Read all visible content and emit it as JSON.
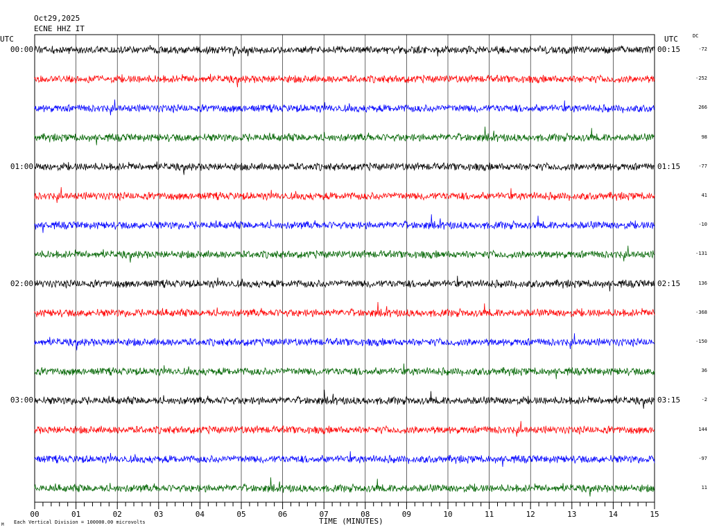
{
  "header": {
    "date": "Oct29,2025",
    "station": "ECNE HHZ IT"
  },
  "labels": {
    "utc_left": "UTC",
    "utc_right": "UTC",
    "dc": "DC",
    "xlabel": "TIME (MINUTES)",
    "scale_note": "Each Vertical Division = 100000.00 microvolts",
    "scale_mark": "M"
  },
  "chart_data": {
    "type": "line",
    "xlabel": "TIME (MINUTES)",
    "xlim": [
      0,
      15
    ],
    "x_ticks": [
      "00",
      "01",
      "02",
      "03",
      "04",
      "05",
      "06",
      "07",
      "08",
      "09",
      "10",
      "11",
      "12",
      "13",
      "14",
      "15"
    ],
    "minor_ticks_per_minute": 5,
    "grid": true,
    "trace_colors": [
      "#000000",
      "#ff0000",
      "#0000ff",
      "#006400"
    ],
    "hour_labels_left": [
      "00:00",
      "01:00",
      "02:00",
      "03:00"
    ],
    "hour_labels_right": [
      "00:15",
      "01:15",
      "02:15",
      "03:15"
    ],
    "dc_offsets": [
      "-72",
      "-252",
      "266",
      "98",
      "-77",
      "41",
      "-10",
      "-131",
      "136",
      "-368",
      "-150",
      "36",
      "-2",
      "144",
      "-97",
      "11"
    ],
    "traces": 16
  }
}
